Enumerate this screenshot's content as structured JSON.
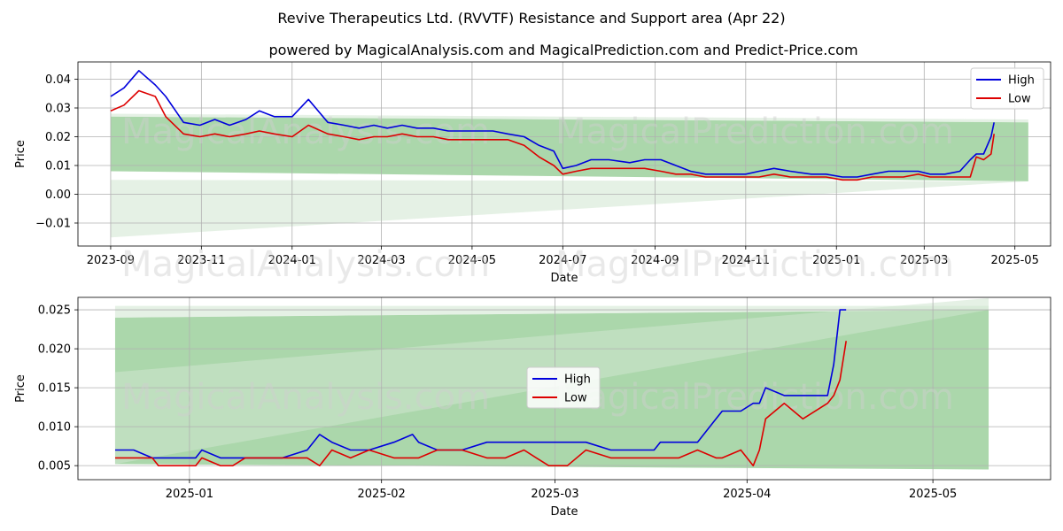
{
  "title": "Revive Therapeutics Ltd. (RVVTF) Resistance and Support area (Apr 22)",
  "subtitle": "powered by MagicalAnalysis.com and MagicalPrediction.com and Predict-Price.com",
  "watermarks": [
    "MagicalAnalysis.com",
    "MagicalPrediction.com"
  ],
  "colors": {
    "high": "#0000dd",
    "low": "#dd0000",
    "band_dark": "#8fc98f",
    "band_light": "#cfe6cf"
  },
  "chart_data": [
    {
      "type": "line",
      "xlabel": "Date",
      "ylabel": "Price",
      "xlim": [
        "2023-08-10",
        "2025-05-25"
      ],
      "ylim": [
        -0.018,
        0.046
      ],
      "x_ticks": [
        "2023-09",
        "2023-11",
        "2024-01",
        "2024-03",
        "2024-05",
        "2024-07",
        "2024-09",
        "2024-11",
        "2025-01",
        "2025-03",
        "2025-05"
      ],
      "y_ticks": [
        "−0.01",
        "0.00",
        "0.01",
        "0.02",
        "0.03",
        "0.04"
      ],
      "legend": {
        "position": "top-right",
        "entries": [
          "High",
          "Low"
        ]
      },
      "grid": true,
      "series": [
        {
          "name": "High",
          "x": [
            "2023-09-01",
            "2023-09-10",
            "2023-09-20",
            "2023-10-01",
            "2023-10-08",
            "2023-10-20",
            "2023-10-31",
            "2023-11-10",
            "2023-11-20",
            "2023-12-01",
            "2023-12-10",
            "2023-12-20",
            "2024-01-01",
            "2024-01-12",
            "2024-01-25",
            "2024-02-05",
            "2024-02-15",
            "2024-02-25",
            "2024-03-05",
            "2024-03-15",
            "2024-03-25",
            "2024-04-05",
            "2024-04-15",
            "2024-04-25",
            "2024-05-05",
            "2024-05-15",
            "2024-05-25",
            "2024-06-05",
            "2024-06-15",
            "2024-06-25",
            "2024-07-01",
            "2024-07-10",
            "2024-07-20",
            "2024-08-01",
            "2024-08-15",
            "2024-08-25",
            "2024-09-05",
            "2024-09-15",
            "2024-09-25",
            "2024-10-05",
            "2024-10-20",
            "2024-11-01",
            "2024-11-10",
            "2024-11-20",
            "2024-12-01",
            "2024-12-15",
            "2024-12-25",
            "2025-01-05",
            "2025-01-15",
            "2025-01-25",
            "2025-02-05",
            "2025-02-15",
            "2025-02-25",
            "2025-03-05",
            "2025-03-15",
            "2025-03-25",
            "2025-04-01",
            "2025-04-05",
            "2025-04-10",
            "2025-04-15",
            "2025-04-17"
          ],
          "values": [
            0.034,
            0.037,
            0.043,
            0.038,
            0.034,
            0.025,
            0.024,
            0.026,
            0.024,
            0.026,
            0.029,
            0.027,
            0.027,
            0.033,
            0.025,
            0.024,
            0.023,
            0.024,
            0.023,
            0.024,
            0.023,
            0.023,
            0.022,
            0.022,
            0.022,
            0.022,
            0.021,
            0.02,
            0.017,
            0.015,
            0.009,
            0.01,
            0.012,
            0.012,
            0.011,
            0.012,
            0.012,
            0.01,
            0.008,
            0.007,
            0.007,
            0.007,
            0.008,
            0.009,
            0.008,
            0.007,
            0.007,
            0.006,
            0.006,
            0.007,
            0.008,
            0.008,
            0.008,
            0.007,
            0.007,
            0.008,
            0.012,
            0.014,
            0.014,
            0.02,
            0.025
          ]
        },
        {
          "name": "Low",
          "x": [
            "2023-09-01",
            "2023-09-10",
            "2023-09-20",
            "2023-10-01",
            "2023-10-08",
            "2023-10-20",
            "2023-10-31",
            "2023-11-10",
            "2023-11-20",
            "2023-12-01",
            "2023-12-10",
            "2023-12-20",
            "2024-01-01",
            "2024-01-12",
            "2024-01-25",
            "2024-02-05",
            "2024-02-15",
            "2024-02-25",
            "2024-03-05",
            "2024-03-15",
            "2024-03-25",
            "2024-04-05",
            "2024-04-15",
            "2024-04-25",
            "2024-05-05",
            "2024-05-15",
            "2024-05-25",
            "2024-06-05",
            "2024-06-15",
            "2024-06-25",
            "2024-07-01",
            "2024-07-10",
            "2024-07-20",
            "2024-08-01",
            "2024-08-15",
            "2024-08-25",
            "2024-09-05",
            "2024-09-15",
            "2024-09-25",
            "2024-10-05",
            "2024-10-20",
            "2024-11-01",
            "2024-11-10",
            "2024-11-20",
            "2024-12-01",
            "2024-12-15",
            "2024-12-25",
            "2025-01-05",
            "2025-01-15",
            "2025-01-25",
            "2025-02-05",
            "2025-02-15",
            "2025-02-25",
            "2025-03-05",
            "2025-03-15",
            "2025-03-25",
            "2025-04-01",
            "2025-04-05",
            "2025-04-10",
            "2025-04-15",
            "2025-04-17"
          ],
          "values": [
            0.029,
            0.031,
            0.036,
            0.034,
            0.027,
            0.021,
            0.02,
            0.021,
            0.02,
            0.021,
            0.022,
            0.021,
            0.02,
            0.024,
            0.021,
            0.02,
            0.019,
            0.02,
            0.02,
            0.021,
            0.02,
            0.02,
            0.019,
            0.019,
            0.019,
            0.019,
            0.019,
            0.017,
            0.013,
            0.01,
            0.007,
            0.008,
            0.009,
            0.009,
            0.009,
            0.009,
            0.008,
            0.007,
            0.007,
            0.006,
            0.006,
            0.006,
            0.006,
            0.007,
            0.006,
            0.006,
            0.006,
            0.005,
            0.005,
            0.006,
            0.006,
            0.006,
            0.007,
            0.006,
            0.006,
            0.006,
            0.006,
            0.013,
            0.012,
            0.014,
            0.021
          ]
        }
      ],
      "bands": [
        {
          "shade": "dark",
          "x": [
            "2023-09-01",
            "2025-05-10"
          ],
          "upper": [
            0.027,
            0.025
          ],
          "lower": [
            0.008,
            0.0045
          ]
        },
        {
          "shade": "light",
          "x": [
            "2023-09-01",
            "2025-05-10"
          ],
          "upper": [
            0.028,
            0.026
          ],
          "lower": [
            0.027,
            0.025
          ]
        },
        {
          "shade": "light",
          "x": [
            "2023-09-01",
            "2025-05-10"
          ],
          "upper": [
            0.005,
            0.0045
          ],
          "lower": [
            -0.015,
            0.0045
          ]
        }
      ]
    },
    {
      "type": "line",
      "xlabel": "Date",
      "ylabel": "Price",
      "xlim": [
        "2024-12-14",
        "2025-05-20"
      ],
      "ylim": [
        0.0032,
        0.0266
      ],
      "x_ticks": [
        "2025-01",
        "2025-02",
        "2025-03",
        "2025-04",
        "2025-05"
      ],
      "y_ticks": [
        "0.005",
        "0.010",
        "0.015",
        "0.020",
        "0.025"
      ],
      "legend": {
        "position": "center",
        "entries": [
          "High",
          "Low"
        ]
      },
      "grid": true,
      "series": [
        {
          "name": "High",
          "x": [
            "2024-12-20",
            "2024-12-23",
            "2024-12-26",
            "2024-12-27",
            "2024-12-30",
            "2025-01-02",
            "2025-01-03",
            "2025-01-06",
            "2025-01-08",
            "2025-01-10",
            "2025-01-13",
            "2025-01-16",
            "2025-01-20",
            "2025-01-22",
            "2025-01-24",
            "2025-01-27",
            "2025-01-30",
            "2025-02-03",
            "2025-02-06",
            "2025-02-07",
            "2025-02-10",
            "2025-02-13",
            "2025-02-14",
            "2025-02-18",
            "2025-02-21",
            "2025-02-24",
            "2025-02-26",
            "2025-02-28",
            "2025-03-03",
            "2025-03-06",
            "2025-03-10",
            "2025-03-13",
            "2025-03-17",
            "2025-03-18",
            "2025-03-21",
            "2025-03-24",
            "2025-03-27",
            "2025-03-28",
            "2025-03-31",
            "2025-04-02",
            "2025-04-03",
            "2025-04-04",
            "2025-04-07",
            "2025-04-10",
            "2025-04-14",
            "2025-04-15",
            "2025-04-16",
            "2025-04-17"
          ],
          "values": [
            0.007,
            0.007,
            0.006,
            0.006,
            0.006,
            0.006,
            0.007,
            0.006,
            0.006,
            0.006,
            0.006,
            0.006,
            0.007,
            0.009,
            0.008,
            0.007,
            0.007,
            0.008,
            0.009,
            0.008,
            0.007,
            0.007,
            0.007,
            0.008,
            0.008,
            0.008,
            0.008,
            0.008,
            0.008,
            0.008,
            0.007,
            0.007,
            0.007,
            0.008,
            0.008,
            0.008,
            0.011,
            0.012,
            0.012,
            0.013,
            0.013,
            0.015,
            0.014,
            0.014,
            0.014,
            0.018,
            0.025,
            0.025
          ]
        },
        {
          "name": "Low",
          "x": [
            "2024-12-20",
            "2024-12-23",
            "2024-12-26",
            "2024-12-27",
            "2024-12-30",
            "2025-01-02",
            "2025-01-03",
            "2025-01-06",
            "2025-01-08",
            "2025-01-10",
            "2025-01-13",
            "2025-01-16",
            "2025-01-20",
            "2025-01-22",
            "2025-01-24",
            "2025-01-27",
            "2025-01-30",
            "2025-02-03",
            "2025-02-06",
            "2025-02-07",
            "2025-02-10",
            "2025-02-13",
            "2025-02-14",
            "2025-02-18",
            "2025-02-21",
            "2025-02-24",
            "2025-02-26",
            "2025-02-28",
            "2025-03-03",
            "2025-03-06",
            "2025-03-10",
            "2025-03-13",
            "2025-03-17",
            "2025-03-18",
            "2025-03-21",
            "2025-03-24",
            "2025-03-27",
            "2025-03-28",
            "2025-03-31",
            "2025-04-02",
            "2025-04-03",
            "2025-04-04",
            "2025-04-07",
            "2025-04-10",
            "2025-04-14",
            "2025-04-15",
            "2025-04-16",
            "2025-04-17"
          ],
          "values": [
            0.006,
            0.006,
            0.006,
            0.005,
            0.005,
            0.005,
            0.006,
            0.005,
            0.005,
            0.006,
            0.006,
            0.006,
            0.006,
            0.005,
            0.007,
            0.006,
            0.007,
            0.006,
            0.006,
            0.006,
            0.007,
            0.007,
            0.007,
            0.006,
            0.006,
            0.007,
            0.006,
            0.005,
            0.005,
            0.007,
            0.006,
            0.006,
            0.006,
            0.006,
            0.006,
            0.007,
            0.006,
            0.006,
            0.007,
            0.005,
            0.007,
            0.011,
            0.013,
            0.011,
            0.013,
            0.014,
            0.016,
            0.021
          ]
        }
      ],
      "bands": [
        {
          "shade": "dark",
          "x": [
            "2024-12-20",
            "2025-05-10"
          ],
          "upper": [
            0.024,
            0.025
          ],
          "lower": [
            0.0052,
            0.0045
          ]
        },
        {
          "shade": "light",
          "x": [
            "2024-12-20",
            "2025-05-10"
          ],
          "upper": [
            0.0255,
            0.0255
          ],
          "lower": [
            0.024,
            0.025
          ]
        },
        {
          "shade": "light",
          "x": [
            "2024-12-20",
            "2025-05-10"
          ],
          "upper": [
            0.017,
            0.0265
          ],
          "lower": [
            0.0052,
            0.025
          ]
        }
      ]
    }
  ]
}
